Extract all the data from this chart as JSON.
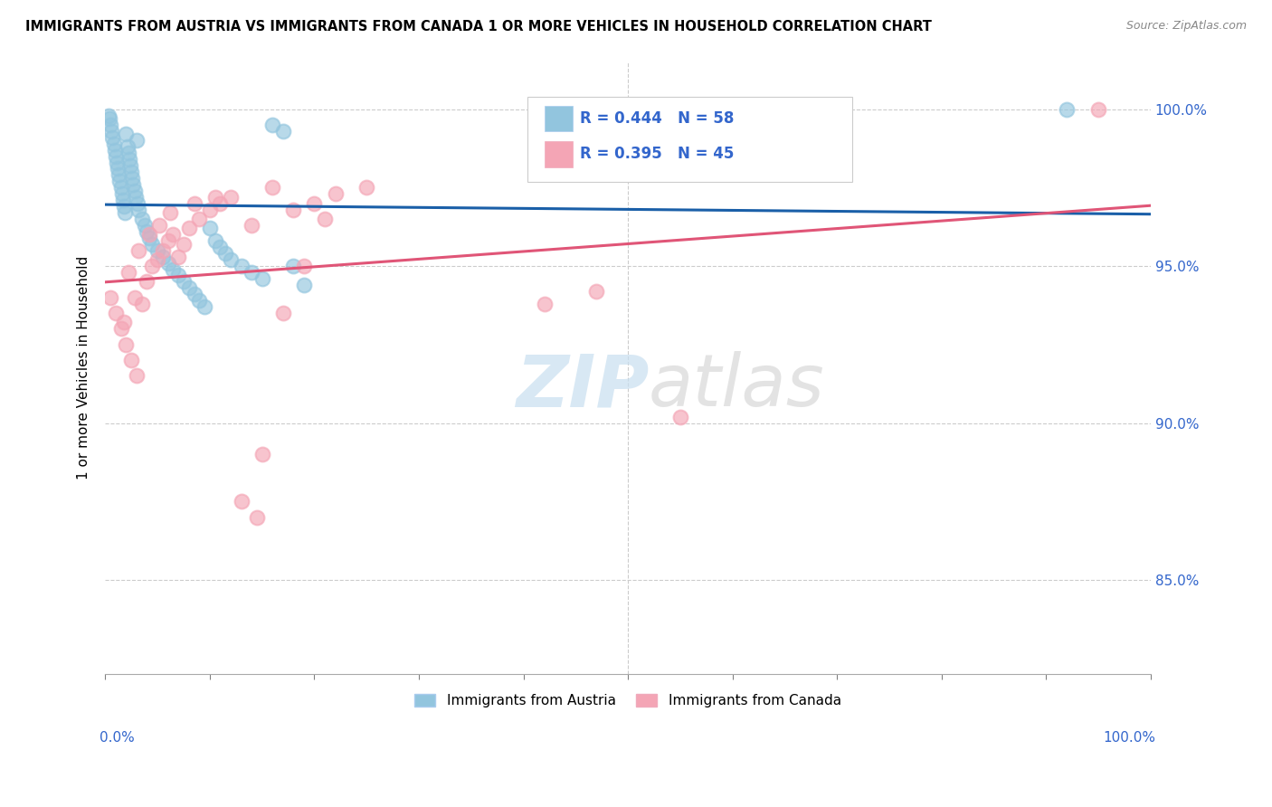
{
  "title": "IMMIGRANTS FROM AUSTRIA VS IMMIGRANTS FROM CANADA 1 OR MORE VEHICLES IN HOUSEHOLD CORRELATION CHART",
  "source": "Source: ZipAtlas.com",
  "ylabel": "1 or more Vehicles in Household",
  "xlabel": "",
  "legend_label1": "Immigrants from Austria",
  "legend_label2": "Immigrants from Canada",
  "R_austria": 0.444,
  "N_austria": 58,
  "R_canada": 0.395,
  "N_canada": 45,
  "xlim": [
    0.0,
    100.0
  ],
  "ylim": [
    82.0,
    101.5
  ],
  "yticks": [
    85.0,
    90.0,
    95.0,
    100.0
  ],
  "xtick_labels": [
    "0.0%",
    "100.0%"
  ],
  "ytick_labels": [
    "85.0%",
    "90.0%",
    "95.0%",
    "100.0%"
  ],
  "color_austria": "#92c5de",
  "color_canada": "#f4a5b5",
  "trendline_austria": "#1a5fa8",
  "trendline_canada": "#e05577",
  "watermark_zip": "ZIP",
  "watermark_atlas": "atlas",
  "austria_x": [
    0.3,
    0.4,
    0.5,
    0.6,
    0.7,
    0.8,
    0.9,
    1.0,
    1.1,
    1.2,
    1.3,
    1.4,
    1.5,
    1.6,
    1.7,
    1.8,
    1.9,
    2.0,
    2.1,
    2.2,
    2.3,
    2.4,
    2.5,
    2.6,
    2.7,
    2.8,
    2.9,
    3.0,
    3.1,
    3.2,
    3.5,
    3.8,
    4.0,
    4.2,
    4.5,
    5.0,
    5.5,
    6.0,
    6.5,
    7.0,
    7.5,
    8.0,
    8.5,
    9.0,
    9.5,
    10.0,
    10.5,
    11.0,
    11.5,
    12.0,
    13.0,
    14.0,
    15.0,
    16.0,
    17.0,
    18.0,
    19.0,
    92.0
  ],
  "austria_y": [
    99.8,
    99.7,
    99.5,
    99.3,
    99.1,
    98.9,
    98.7,
    98.5,
    98.3,
    98.1,
    97.9,
    97.7,
    97.5,
    97.3,
    97.1,
    96.9,
    96.7,
    99.2,
    98.8,
    98.6,
    98.4,
    98.2,
    98.0,
    97.8,
    97.6,
    97.4,
    97.2,
    99.0,
    97.0,
    96.8,
    96.5,
    96.3,
    96.1,
    95.9,
    95.7,
    95.5,
    95.3,
    95.1,
    94.9,
    94.7,
    94.5,
    94.3,
    94.1,
    93.9,
    93.7,
    96.2,
    95.8,
    95.6,
    95.4,
    95.2,
    95.0,
    94.8,
    94.6,
    99.5,
    99.3,
    95.0,
    94.4,
    100.0
  ],
  "canada_x": [
    0.5,
    1.0,
    1.5,
    2.0,
    2.5,
    3.0,
    3.5,
    4.0,
    4.5,
    5.0,
    5.5,
    6.0,
    6.5,
    7.0,
    7.5,
    8.0,
    9.0,
    10.0,
    11.0,
    12.0,
    14.0,
    16.0,
    18.0,
    20.0,
    22.0,
    25.0,
    2.2,
    3.2,
    4.2,
    5.2,
    6.2,
    8.5,
    10.5,
    13.0,
    42.0,
    47.0,
    55.0,
    15.0,
    17.0,
    19.0,
    21.0,
    1.8,
    2.8,
    14.5,
    95.0
  ],
  "canada_y": [
    94.0,
    93.5,
    93.0,
    92.5,
    92.0,
    91.5,
    93.8,
    94.5,
    95.0,
    95.2,
    95.5,
    95.8,
    96.0,
    95.3,
    95.7,
    96.2,
    96.5,
    96.8,
    97.0,
    97.2,
    96.3,
    97.5,
    96.8,
    97.0,
    97.3,
    97.5,
    94.8,
    95.5,
    96.0,
    96.3,
    96.7,
    97.0,
    97.2,
    87.5,
    93.8,
    94.2,
    90.2,
    89.0,
    93.5,
    95.0,
    96.5,
    93.2,
    94.0,
    87.0,
    100.0
  ]
}
